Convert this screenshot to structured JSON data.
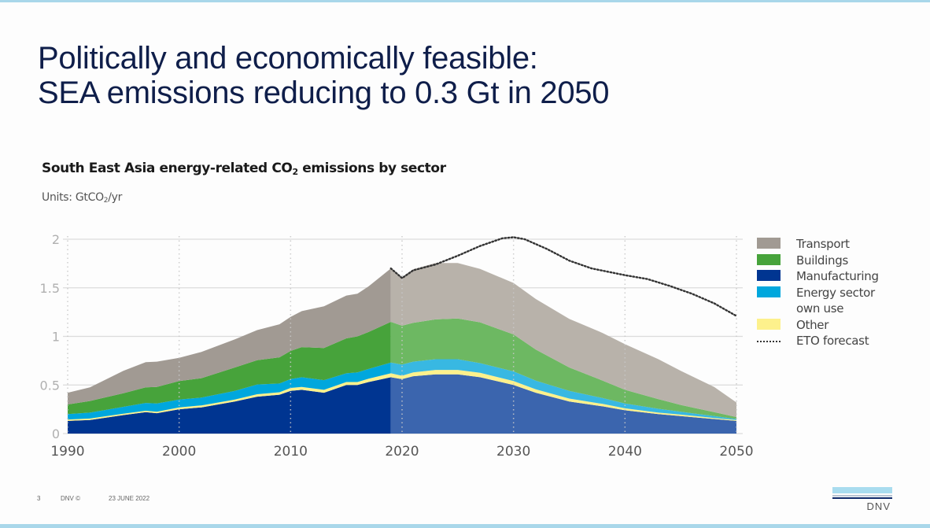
{
  "slide": {
    "title_line1": "Politically and economically feasible:",
    "title_line2": "SEA emissions reducing to 0.3 Gt in 2050",
    "chart_title_pre": "South East Asia energy-related CO",
    "chart_title_sub": "2",
    "chart_title_post": " emissions by sector",
    "units_pre": "Units: GtCO",
    "units_sub": "2",
    "units_post": "/yr",
    "footer_page": "3",
    "footer_brand": "DNV ©",
    "footer_date": "23 JUNE 2022",
    "logo_text": "DNV"
  },
  "colors": {
    "Transport_hist": "#a19a93",
    "Transport_fc": "#b8b2aa",
    "Buildings_hist": "#47a33b",
    "Buildings_fc": "#6db862",
    "Manufacturing_hist": "#003591",
    "Manufacturing_fc": "#3b65ae",
    "Energy_hist": "#00a7dd",
    "Energy_fc": "#38b8e2",
    "Other": "#fdf18c",
    "ETO": "#333333",
    "grid": "#dcdcdc",
    "tick": "#b0b0b0",
    "xtick": "#555555"
  },
  "chart_data": {
    "type": "area",
    "title": "South East Asia energy-related CO2 emissions by sector",
    "ylabel": "Units: GtCO2/yr",
    "xlim": [
      1990,
      2050
    ],
    "ylim": [
      0,
      2
    ],
    "x_ticks": [
      1990,
      2000,
      2010,
      2020,
      2030,
      2040,
      2050
    ],
    "y_ticks": [
      0,
      0.5,
      1,
      1.5,
      2
    ],
    "y_tick_labels": [
      "0",
      "0.5",
      "1",
      "1.5",
      "2"
    ],
    "grid": true,
    "history_end_year": 2019,
    "legend_position": "right",
    "x": [
      1990,
      1992,
      1995,
      1997,
      1998,
      2000,
      2002,
      2005,
      2007,
      2009,
      2010,
      2011,
      2013,
      2015,
      2016,
      2017,
      2019,
      2020,
      2021,
      2023,
      2025,
      2027,
      2030,
      2032,
      2035,
      2038,
      2040,
      2043,
      2045,
      2048,
      2050
    ],
    "series": [
      {
        "name": "Manufacturing",
        "values": [
          0.13,
          0.14,
          0.19,
          0.22,
          0.21,
          0.25,
          0.27,
          0.33,
          0.38,
          0.4,
          0.44,
          0.45,
          0.42,
          0.5,
          0.5,
          0.53,
          0.58,
          0.56,
          0.59,
          0.61,
          0.61,
          0.58,
          0.5,
          0.42,
          0.33,
          0.28,
          0.24,
          0.2,
          0.18,
          0.15,
          0.13
        ]
      },
      {
        "name": "Other",
        "values": [
          0.015,
          0.015,
          0.015,
          0.015,
          0.015,
          0.02,
          0.02,
          0.02,
          0.025,
          0.025,
          0.03,
          0.03,
          0.03,
          0.03,
          0.03,
          0.035,
          0.04,
          0.035,
          0.04,
          0.045,
          0.045,
          0.045,
          0.04,
          0.035,
          0.03,
          0.025,
          0.02,
          0.015,
          0.015,
          0.01,
          0.01
        ]
      },
      {
        "name": "Energy sector own use",
        "values": [
          0.055,
          0.06,
          0.07,
          0.08,
          0.085,
          0.08,
          0.08,
          0.09,
          0.1,
          0.09,
          0.09,
          0.1,
          0.1,
          0.09,
          0.1,
          0.1,
          0.11,
          0.115,
          0.11,
          0.11,
          0.11,
          0.1,
          0.1,
          0.09,
          0.08,
          0.06,
          0.05,
          0.04,
          0.03,
          0.02,
          0.01
        ]
      },
      {
        "name": "Buildings",
        "values": [
          0.1,
          0.12,
          0.14,
          0.16,
          0.17,
          0.19,
          0.2,
          0.24,
          0.25,
          0.27,
          0.29,
          0.31,
          0.33,
          0.36,
          0.37,
          0.38,
          0.42,
          0.4,
          0.4,
          0.41,
          0.42,
          0.42,
          0.38,
          0.32,
          0.24,
          0.18,
          0.14,
          0.1,
          0.07,
          0.04,
          0.02
        ]
      },
      {
        "name": "Transport",
        "values": [
          0.12,
          0.14,
          0.23,
          0.26,
          0.26,
          0.24,
          0.27,
          0.29,
          0.31,
          0.34,
          0.35,
          0.37,
          0.43,
          0.44,
          0.44,
          0.47,
          0.55,
          0.5,
          0.55,
          0.58,
          0.57,
          0.55,
          0.53,
          0.52,
          0.5,
          0.49,
          0.47,
          0.41,
          0.35,
          0.26,
          0.15
        ]
      }
    ],
    "eto_forecast": {
      "name": "ETO forecast",
      "x": [
        2019,
        2020,
        2021,
        2023,
        2025,
        2027,
        2029,
        2030,
        2031,
        2033,
        2035,
        2037,
        2040,
        2042,
        2044,
        2046,
        2048,
        2050
      ],
      "values": [
        1.7,
        1.6,
        1.68,
        1.74,
        1.83,
        1.93,
        2.01,
        2.02,
        2.0,
        1.9,
        1.78,
        1.7,
        1.63,
        1.59,
        1.52,
        1.44,
        1.34,
        1.21
      ]
    },
    "legend": [
      "Transport",
      "Buildings",
      "Manufacturing",
      "Energy sector own use",
      "Other",
      "ETO forecast"
    ]
  },
  "legend_items": [
    {
      "label": "Transport",
      "color": "#a19a93"
    },
    {
      "label": "Buildings",
      "color": "#47a33b"
    },
    {
      "label": "Manufacturing",
      "color": "#003591"
    },
    {
      "label": "Energy sector",
      "label2": "own use",
      "color": "#00a7dd"
    },
    {
      "label": "Other",
      "color": "#fdf18c"
    },
    {
      "label": "ETO forecast",
      "color": "dotted"
    }
  ]
}
